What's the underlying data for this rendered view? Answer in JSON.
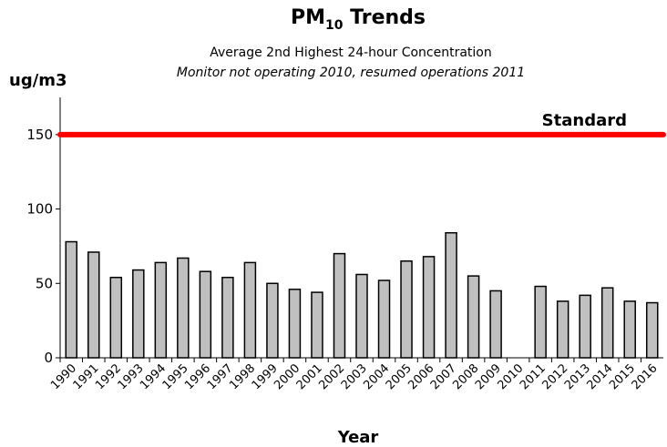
{
  "chart_data": {
    "type": "bar",
    "title": "PM",
    "title_subscript": "10",
    "title_suffix": "Trends",
    "subtitle": "Average 2nd Highest  24-hour Concentration",
    "annotation": "Monitor not operating 2010, resumed operations 2011",
    "y_label": "ug/m3",
    "x_label": "Year",
    "categories": [
      "1990",
      "1991",
      "1992",
      "1993",
      "1994",
      "1995",
      "1996",
      "1997",
      "1998",
      "1999",
      "2000",
      "2001",
      "2002",
      "2003",
      "2004",
      "2005",
      "2006",
      "2007",
      "2008",
      "2009",
      "2010",
      "2011",
      "2012",
      "2013",
      "2014",
      "2015",
      "2016"
    ],
    "values": [
      78,
      71,
      54,
      59,
      64,
      67,
      58,
      54,
      64,
      50,
      46,
      44,
      70,
      56,
      52,
      65,
      68,
      84,
      55,
      45,
      null,
      48,
      38,
      42,
      47,
      38,
      37
    ],
    "color": "#c0c0c0",
    "standard": {
      "label": "Standard",
      "value": 150,
      "color": "#ff0000"
    },
    "ylim": [
      0,
      175
    ],
    "yticks": [
      0,
      50,
      100,
      150
    ],
    "grid": false
  }
}
